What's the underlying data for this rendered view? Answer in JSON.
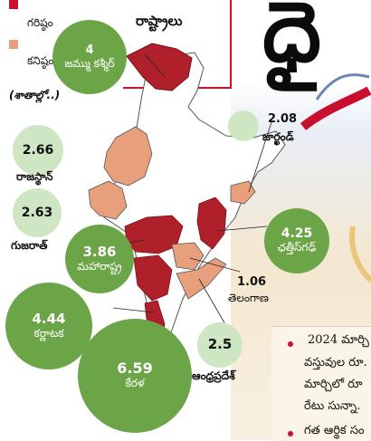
{
  "header": {
    "title_fragment": "రాష్ట్రాలు"
  },
  "legend": {
    "items": [
      {
        "label": "గరిష్ఠం",
        "color": "#b0202b"
      },
      {
        "label": "కనిష్ఠం",
        "color": "#e8a07c"
      }
    ],
    "unit": "(శాతాల్లో..)"
  },
  "states": [
    {
      "name": "జమ్ము కశ్మీర్",
      "value": "4",
      "level": "max"
    },
    {
      "name": "రాజస్థాన్",
      "value": "2.66",
      "level": "min"
    },
    {
      "name": "గుజరాత్",
      "value": "2.63",
      "level": "min"
    },
    {
      "name": "మహారాష్ట్ర",
      "value": "3.86",
      "level": "max"
    },
    {
      "name": "కర్ణాటక",
      "value": "4.44",
      "level": "max"
    },
    {
      "name": "కేరళ",
      "value": "6.59",
      "level": "max"
    },
    {
      "name": "ఆంధ్రప్రదేశ్",
      "value": "2.5",
      "level": "min"
    },
    {
      "name": "తెలంగాణ",
      "value": "1.06",
      "level": "min"
    },
    {
      "name": "ఛత్తీస్‌గఢ్",
      "value": "4.25",
      "level": "max"
    },
    {
      "name": "జార్ఖండ్",
      "value": "2.08",
      "level": "min"
    }
  ],
  "article": {
    "headline_fragment": "ధై",
    "lines": [
      "2024 మార్చి",
      "వస్తువుల రూ.",
      "మార్చిలో రూ",
      "రేటు సున్నా.",
      "గత ఆర్థిక సం"
    ]
  },
  "colors": {
    "max": "#b0202b",
    "min": "#e8a07c",
    "bubble": "#6ba547",
    "bubble_light": "#cfe6c3",
    "map_base": "#ffffff",
    "map_border": "#555555"
  }
}
